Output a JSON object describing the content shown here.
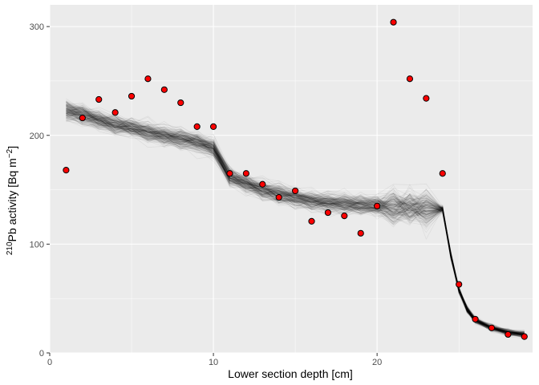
{
  "chart_data": {
    "type": "scatter",
    "title": "",
    "xlabel": "Lower section depth [cm]",
    "ylabel": {
      "sup_mass": "210",
      "element": "Pb activity [Bq m",
      "unit_exp": "−2",
      "close": "]"
    },
    "xlim": [
      0,
      29.5
    ],
    "ylim": [
      0,
      320
    ],
    "x_ticks": [
      "0",
      "10",
      "20",
      "30"
    ],
    "y_ticks": [
      "0",
      "100",
      "200",
      "300"
    ],
    "grid": true,
    "legend": "none",
    "colors": {
      "panel": "#ebebeb",
      "grid_major": "#ffffff",
      "point_fill": "#ff0000",
      "point_stroke": "#000000",
      "ensemble_line": "#000000"
    },
    "points": {
      "x": [
        1,
        2,
        3,
        4,
        5,
        6,
        7,
        8,
        9,
        10,
        11,
        12,
        13,
        14,
        15,
        16,
        17,
        18,
        19,
        20,
        21,
        22,
        23,
        24,
        25,
        26,
        27,
        28,
        29
      ],
      "y": [
        168,
        216,
        233,
        221,
        236,
        252,
        242,
        230,
        208,
        208,
        165,
        165,
        155,
        143,
        149,
        121,
        129,
        126,
        110,
        135,
        304,
        252,
        234,
        165,
        63,
        31,
        23,
        17,
        15
      ]
    },
    "model_mean": {
      "x": [
        1,
        2,
        3,
        4,
        5,
        6,
        7,
        8,
        9,
        10,
        11,
        12,
        13,
        14,
        15,
        16,
        17,
        18,
        19,
        20,
        21,
        22,
        23,
        24,
        24.5,
        25,
        25.5,
        26,
        27,
        28,
        29
      ],
      "y": [
        223,
        219,
        214,
        210,
        207,
        203,
        200,
        197,
        194,
        188,
        162,
        156,
        150,
        146,
        143,
        140,
        138,
        137,
        136,
        135,
        134,
        134,
        133,
        132,
        90,
        58,
        40,
        30,
        23,
        19,
        17
      ]
    }
  }
}
